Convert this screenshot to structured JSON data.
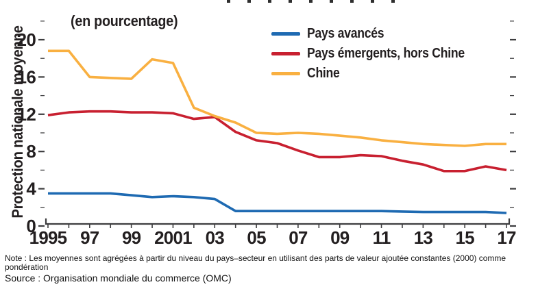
{
  "window": {
    "background": "#ffffff"
  },
  "top_edge": {
    "clipped_title_text_visible": true
  },
  "chart": {
    "subtitle": "(en pourcentage)",
    "y_axis_title": "Protection nationale moyenne",
    "legend": [
      {
        "label": "Pays avancés",
        "color": "#1e6ab2"
      },
      {
        "label": "Pays émergents, hors Chine",
        "color": "#c82030"
      },
      {
        "label": "Chine",
        "color": "#f9b041"
      }
    ]
  },
  "chart_data": {
    "type": "line",
    "title": "",
    "subtitle": "(en pourcentage)",
    "xlabel": "",
    "ylabel": "Protection nationale moyenne",
    "grid": false,
    "legend_position": "top-right",
    "axis_color": "#3d3d3f",
    "label_color": "#231f20",
    "ylim": [
      0,
      22.5
    ],
    "x": [
      1995,
      1996,
      1997,
      1998,
      1999,
      2000,
      2001,
      2002,
      2003,
      2004,
      2005,
      2006,
      2007,
      2008,
      2009,
      2010,
      2011,
      2012,
      2013,
      2014,
      2015,
      2016,
      2017
    ],
    "x_tick_labels": [
      {
        "x": 1995,
        "label": "1995"
      },
      {
        "x": 1997,
        "label": "97"
      },
      {
        "x": 1999,
        "label": "99"
      },
      {
        "x": 2001,
        "label": "2001"
      },
      {
        "x": 2003,
        "label": "03"
      },
      {
        "x": 2005,
        "label": "05"
      },
      {
        "x": 2007,
        "label": "07"
      },
      {
        "x": 2009,
        "label": "09"
      },
      {
        "x": 2011,
        "label": "11"
      },
      {
        "x": 2013,
        "label": "13"
      },
      {
        "x": 2015,
        "label": "15"
      },
      {
        "x": 2017,
        "label": "17"
      }
    ],
    "y_major_ticks": [
      0,
      4,
      8,
      12,
      16,
      20
    ],
    "y_minor_ticks": [
      2,
      6,
      10,
      14,
      18,
      22
    ],
    "series": [
      {
        "name": "Pays avancés",
        "color": "#1e6ab2",
        "values": [
          3.5,
          3.5,
          3.5,
          3.5,
          3.3,
          3.1,
          3.2,
          3.1,
          2.9,
          1.6,
          1.6,
          1.6,
          1.6,
          1.6,
          1.6,
          1.6,
          1.6,
          1.55,
          1.5,
          1.5,
          1.5,
          1.5,
          1.4
        ]
      },
      {
        "name": "Pays émergents, hors Chine",
        "color": "#c82030",
        "values": [
          11.9,
          12.2,
          12.3,
          12.3,
          12.2,
          12.2,
          12.1,
          11.5,
          11.7,
          10.1,
          9.2,
          8.9,
          8.1,
          7.4,
          7.4,
          7.6,
          7.5,
          7.0,
          6.6,
          5.9,
          5.9,
          6.4,
          6.0
        ]
      },
      {
        "name": "Chine",
        "color": "#f9b041",
        "values": [
          18.8,
          18.8,
          16.0,
          15.9,
          15.8,
          17.9,
          17.5,
          12.7,
          11.8,
          11.1,
          10.0,
          9.9,
          10.0,
          9.9,
          9.7,
          9.5,
          9.2,
          9.0,
          8.8,
          8.7,
          8.6,
          8.8,
          8.8
        ]
      }
    ]
  },
  "footer": {
    "note": "Note : Les moyennes sont agrégées à partir du niveau du pays–secteur en utilisant des parts de valeur ajoutée constantes (2000) comme pondération",
    "source": "Source : Organisation mondiale du commerce (OMC)"
  }
}
